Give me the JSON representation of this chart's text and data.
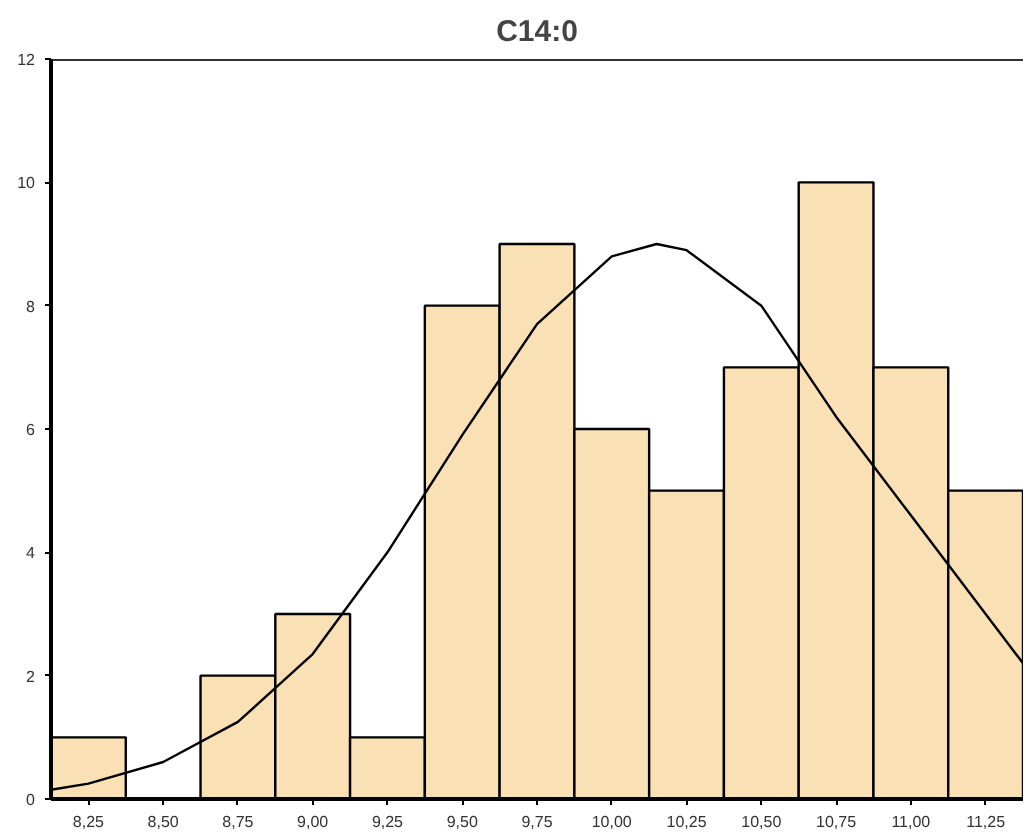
{
  "chart_data": {
    "type": "histogram",
    "title": "C14:0",
    "bins": [
      8.125,
      8.375,
      8.625,
      8.875,
      9.125,
      9.375,
      9.625,
      9.875,
      10.125,
      10.375,
      10.625,
      10.875,
      11.125,
      11.375
    ],
    "values": [
      1,
      0,
      2,
      3,
      1,
      8,
      9,
      6,
      5,
      7,
      10,
      7,
      5
    ],
    "color": "#fae1b5",
    "series": [
      {
        "type": "line",
        "color": "#000000",
        "x": [
          8.125,
          8.25,
          8.5,
          8.75,
          9.0,
          9.25,
          9.5,
          9.75,
          10.0,
          10.15,
          10.25,
          10.5,
          10.75,
          11.0,
          11.25,
          11.375
        ],
        "values": [
          0.15,
          0.25,
          0.6,
          1.25,
          2.35,
          4.0,
          5.9,
          7.7,
          8.8,
          9.0,
          8.9,
          8.0,
          6.2,
          4.6,
          3.0,
          2.2
        ]
      }
    ],
    "xlim": [
      8.125,
      11.375
    ],
    "xticks": [
      {
        "value": 8.25,
        "label": "8,25"
      },
      {
        "value": 8.5,
        "label": "8,50"
      },
      {
        "value": 8.75,
        "label": "8,75"
      },
      {
        "value": 9.0,
        "label": "9,00"
      },
      {
        "value": 9.25,
        "label": "9,25"
      },
      {
        "value": 9.5,
        "label": "9,50"
      },
      {
        "value": 9.75,
        "label": "9,75"
      },
      {
        "value": 10.0,
        "label": "10,00"
      },
      {
        "value": 10.25,
        "label": "10,25"
      },
      {
        "value": 10.5,
        "label": "10,50"
      },
      {
        "value": 10.75,
        "label": "10,75"
      },
      {
        "value": 11.0,
        "label": "11,00"
      },
      {
        "value": 11.25,
        "label": "11,25"
      }
    ],
    "ylim": [
      0,
      12
    ],
    "yticks": [
      0,
      2,
      4,
      6,
      8,
      10,
      12
    ],
    "grid": false
  }
}
